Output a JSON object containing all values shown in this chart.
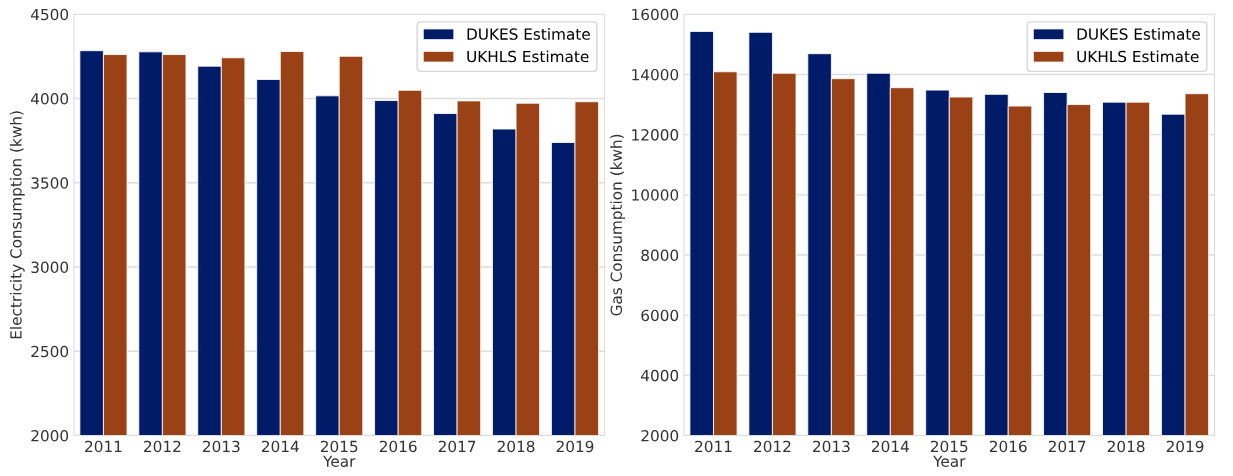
{
  "chart_data": [
    {
      "type": "bar",
      "xlabel": "Year",
      "ylabel": "Electricity Consumption (kwh)",
      "categories": [
        "2011",
        "2012",
        "2013",
        "2014",
        "2015",
        "2016",
        "2017",
        "2018",
        "2019"
      ],
      "series": [
        {
          "name": "DUKES Estimate",
          "color": "#001c68",
          "values": [
            4284,
            4277,
            4192,
            4113,
            4016,
            3988,
            3911,
            3819,
            3739
          ]
        },
        {
          "name": "UKHLS Estimate",
          "color": "#9a4215",
          "values": [
            4261,
            4261,
            4242,
            4279,
            4251,
            4049,
            3986,
            3972,
            3981
          ]
        }
      ],
      "ylim": [
        2000,
        4500
      ],
      "yticks": [
        2000,
        2500,
        3000,
        3500,
        4000,
        4500
      ],
      "grid": "y",
      "legend": "top right"
    },
    {
      "type": "bar",
      "xlabel": "Year",
      "ylabel": "Gas Consumption (kwh)",
      "categories": [
        "2011",
        "2012",
        "2013",
        "2014",
        "2015",
        "2016",
        "2017",
        "2018",
        "2019"
      ],
      "series": [
        {
          "name": "DUKES Estimate",
          "color": "#001c68",
          "values": [
            15430,
            15400,
            14690,
            14040,
            13480,
            13340,
            13400,
            13080,
            12680
          ]
        },
        {
          "name": "UKHLS Estimate",
          "color": "#9a4215",
          "values": [
            14090,
            14040,
            13860,
            13560,
            13250,
            12950,
            13000,
            13080,
            13360
          ]
        }
      ],
      "ylim": [
        2000,
        16000
      ],
      "yticks": [
        2000,
        4000,
        6000,
        8000,
        10000,
        12000,
        14000,
        16000
      ],
      "grid": "y",
      "legend": "top right"
    }
  ]
}
